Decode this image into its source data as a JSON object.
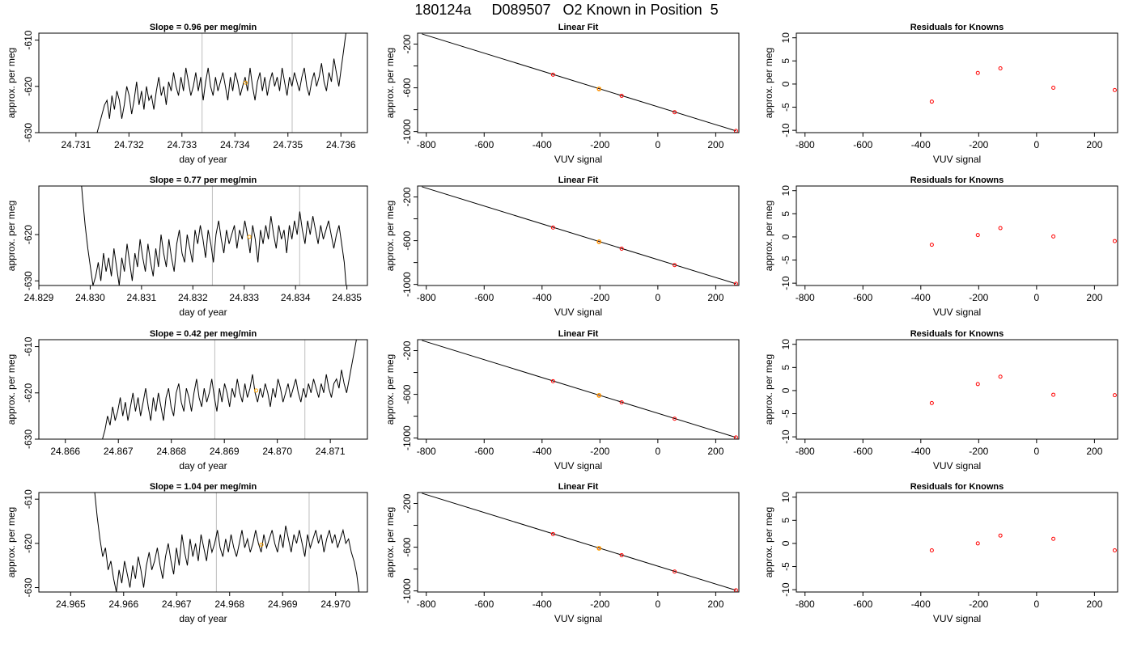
{
  "title": "180124a     D089507   O2 Known in Position  5",
  "colors": {
    "trace": "#000000",
    "vline": "#bebebe",
    "orange": "#ffa500",
    "residual": "#ff0000",
    "frame": "#000000"
  },
  "chart_data": [
    {
      "type": "line",
      "title": "Slope =  0.96  per meg/min",
      "xlabel": "day of year",
      "ylabel": "approx. per meg",
      "xlim": [
        24.7303,
        24.7365
      ],
      "ylim": [
        -630,
        -608.5
      ],
      "xticks": [
        "24.731",
        "24.732",
        "24.733",
        "24.734",
        "24.735",
        "24.736"
      ],
      "yticks": [
        "-610",
        "-620",
        "-630"
      ],
      "vlines": [
        24.73338,
        24.73508
      ],
      "highlight": {
        "x": 24.7342,
        "y": -619.2
      },
      "x_start": 24.7314,
      "x_end": 24.7361,
      "y_points": [
        -630,
        -628,
        -626,
        -624,
        -623,
        -627,
        -622,
        -625,
        -621,
        -623,
        -627,
        -624,
        -620,
        -622,
        -626,
        -623,
        -619,
        -624,
        -621,
        -625,
        -620,
        -623,
        -622,
        -625,
        -621,
        -618,
        -622,
        -620,
        -624,
        -619,
        -621,
        -617,
        -620,
        -622,
        -618,
        -621,
        -616,
        -619,
        -622,
        -620,
        -617,
        -621,
        -618,
        -623,
        -619,
        -616,
        -620,
        -622,
        -618,
        -621,
        -619,
        -617,
        -620,
        -623,
        -618,
        -621,
        -617,
        -619,
        -622,
        -620,
        -618,
        -621,
        -616,
        -620,
        -623,
        -619,
        -617,
        -621,
        -618,
        -622,
        -619,
        -617,
        -620,
        -618,
        -621,
        -616,
        -619,
        -622,
        -618,
        -620,
        -617,
        -619,
        -621,
        -618,
        -616,
        -620,
        -622,
        -619,
        -617,
        -620,
        -618,
        -615,
        -619,
        -621,
        -617,
        -619,
        -614,
        -617,
        -620,
        -616,
        -612,
        -608
      ]
    },
    {
      "type": "scatter",
      "title": "Linear Fit",
      "xlabel": "VUV signal",
      "ylabel": "approx. per meg",
      "xlim": [
        -830,
        280
      ],
      "ylim": [
        -1010,
        -100
      ],
      "xticks": [
        -800,
        -600,
        -400,
        -200,
        0,
        200
      ],
      "yticks": [
        -200,
        -600,
        -1000
      ],
      "line": [
        [
          -815,
          -107
        ],
        [
          270,
          -994
        ]
      ],
      "points": [
        [
          -362,
          -480
        ],
        [
          -203,
          -610
        ],
        [
          -125,
          -673
        ],
        [
          58,
          -823
        ],
        [
          270,
          -994
        ]
      ],
      "highlight": [
        -203,
        -610
      ]
    },
    {
      "type": "scatter",
      "title": "Residuals for Knowns",
      "xlabel": "VUV signal",
      "ylabel": "approx. per meg",
      "xlim": [
        -830,
        280
      ],
      "ylim": [
        -10.5,
        11
      ],
      "xticks": [
        -800,
        -600,
        -400,
        -200,
        0,
        200
      ],
      "yticks": [
        10,
        5,
        0,
        -5,
        -10
      ],
      "points": [
        [
          -362,
          -3.8
        ],
        [
          -203,
          2.4
        ],
        [
          -125,
          3.4
        ],
        [
          58,
          -0.8
        ],
        [
          270,
          -1.3
        ]
      ]
    },
    {
      "type": "line",
      "title": "Slope =  0.77  per meg/min",
      "xlabel": "day of year",
      "ylabel": "approx. per meg",
      "xlim": [
        24.829,
        24.8354
      ],
      "ylim": [
        -631,
        -609.5
      ],
      "xticks": [
        "24.829",
        "24.830",
        "24.831",
        "24.832",
        "24.833",
        "24.834",
        "24.835"
      ],
      "yticks": [
        "-620",
        "-630"
      ],
      "vlines": [
        24.83238,
        24.83408
      ],
      "highlight": {
        "x": 24.8331,
        "y": -620.5
      },
      "x_start": 24.8298,
      "x_end": 24.835,
      "y_points": [
        -605,
        -612,
        -618,
        -623,
        -627,
        -631,
        -629,
        -626,
        -630,
        -624,
        -628,
        -625,
        -629,
        -623,
        -627,
        -631,
        -625,
        -628,
        -622,
        -626,
        -630,
        -624,
        -627,
        -621,
        -625,
        -628,
        -622,
        -626,
        -629,
        -623,
        -627,
        -620,
        -624,
        -627,
        -621,
        -625,
        -628,
        -622,
        -619,
        -624,
        -626,
        -620,
        -623,
        -626,
        -619,
        -622,
        -618,
        -621,
        -625,
        -619,
        -622,
        -626,
        -620,
        -617,
        -621,
        -624,
        -619,
        -622,
        -620,
        -618,
        -623,
        -619,
        -621,
        -617,
        -620,
        -624,
        -618,
        -621,
        -626,
        -619,
        -622,
        -618,
        -621,
        -616,
        -620,
        -623,
        -618,
        -621,
        -619,
        -624,
        -618,
        -621,
        -617,
        -620,
        -615,
        -619,
        -622,
        -617,
        -620,
        -616,
        -619,
        -622,
        -618,
        -621,
        -619,
        -617,
        -620,
        -623,
        -620,
        -618,
        -622,
        -626,
        -633
      ]
    },
    {
      "type": "scatter",
      "title": "Linear Fit",
      "xlabel": "VUV signal",
      "ylabel": "approx. per meg",
      "xlim": [
        -830,
        280
      ],
      "ylim": [
        -1010,
        -100
      ],
      "xticks": [
        -800,
        -600,
        -400,
        -200,
        0,
        200
      ],
      "yticks": [
        -200,
        -600,
        -1000
      ],
      "line": [
        [
          -815,
          -107
        ],
        [
          270,
          -994
        ]
      ],
      "points": [
        [
          -362,
          -480
        ],
        [
          -203,
          -610
        ],
        [
          -125,
          -673
        ],
        [
          58,
          -823
        ],
        [
          270,
          -994
        ]
      ],
      "highlight": [
        -203,
        -610
      ]
    },
    {
      "type": "scatter",
      "title": "Residuals for Knowns",
      "xlabel": "VUV signal",
      "ylabel": "approx. per meg",
      "xlim": [
        -830,
        280
      ],
      "ylim": [
        -10.5,
        11
      ],
      "xticks": [
        -800,
        -600,
        -400,
        -200,
        0,
        200
      ],
      "yticks": [
        10,
        5,
        0,
        -5,
        -10
      ],
      "points": [
        [
          -362,
          -1.7
        ],
        [
          -203,
          0.4
        ],
        [
          -125,
          1.9
        ],
        [
          58,
          0.1
        ],
        [
          270,
          -0.9
        ]
      ]
    },
    {
      "type": "line",
      "title": "Slope =  0.42  per meg/min",
      "xlabel": "day of year",
      "ylabel": "approx. per meg",
      "xlim": [
        24.8655,
        24.8717
      ],
      "ylim": [
        -630,
        -608.5
      ],
      "xticks": [
        "24.866",
        "24.867",
        "24.868",
        "24.869",
        "24.870",
        "24.871"
      ],
      "yticks": [
        "-610",
        "-620",
        "-630"
      ],
      "vlines": [
        24.86882,
        24.87052
      ],
      "highlight": {
        "x": 24.8696,
        "y": -619.5
      },
      "x_start": 24.8667,
      "x_end": 24.8715,
      "y_points": [
        -630,
        -628,
        -625,
        -627,
        -623,
        -626,
        -624,
        -621,
        -625,
        -622,
        -626,
        -623,
        -620,
        -624,
        -621,
        -625,
        -622,
        -619,
        -623,
        -626,
        -621,
        -624,
        -620,
        -623,
        -626,
        -621,
        -619,
        -623,
        -625,
        -620,
        -618,
        -622,
        -624,
        -619,
        -621,
        -624,
        -620,
        -617,
        -621,
        -623,
        -619,
        -622,
        -620,
        -617,
        -621,
        -624,
        -619,
        -622,
        -618,
        -620,
        -623,
        -619,
        -621,
        -617,
        -620,
        -622,
        -618,
        -621,
        -619,
        -616,
        -620,
        -622,
        -619,
        -621,
        -618,
        -620,
        -623,
        -619,
        -621,
        -617,
        -619,
        -622,
        -620,
        -618,
        -621,
        -619,
        -617,
        -620,
        -622,
        -619,
        -621,
        -618,
        -620,
        -617,
        -619,
        -621,
        -618,
        -620,
        -616,
        -619,
        -621,
        -618,
        -617,
        -619,
        -615,
        -618,
        -620,
        -617,
        -614,
        -611,
        -608
      ]
    },
    {
      "type": "scatter",
      "title": "Linear Fit",
      "xlabel": "VUV signal",
      "ylabel": "approx. per meg",
      "xlim": [
        -830,
        280
      ],
      "ylim": [
        -1010,
        -100
      ],
      "xticks": [
        -800,
        -600,
        -400,
        -200,
        0,
        200
      ],
      "yticks": [
        -200,
        -600,
        -1000
      ],
      "line": [
        [
          -815,
          -107
        ],
        [
          270,
          -994
        ]
      ],
      "points": [
        [
          -362,
          -480
        ],
        [
          -203,
          -610
        ],
        [
          -125,
          -673
        ],
        [
          58,
          -823
        ],
        [
          270,
          -994
        ]
      ],
      "highlight": [
        -203,
        -610
      ]
    },
    {
      "type": "scatter",
      "title": "Residuals for Knowns",
      "xlabel": "VUV signal",
      "ylabel": "approx. per meg",
      "xlim": [
        -830,
        280
      ],
      "ylim": [
        -10.5,
        11
      ],
      "xticks": [
        -800,
        -600,
        -400,
        -200,
        0,
        200
      ],
      "yticks": [
        10,
        5,
        0,
        -5,
        -10
      ],
      "points": [
        [
          -362,
          -2.7
        ],
        [
          -203,
          1.4
        ],
        [
          -125,
          3.0
        ],
        [
          58,
          -0.9
        ],
        [
          270,
          -1.0
        ]
      ]
    },
    {
      "type": "line",
      "title": "Slope =  1.04  per meg/min",
      "xlabel": "day of year",
      "ylabel": "approx. per meg",
      "xlim": [
        24.9644,
        24.9706
      ],
      "ylim": [
        -631,
        -608.5
      ],
      "xticks": [
        "24.965",
        "24.966",
        "24.967",
        "24.968",
        "24.969",
        "24.970"
      ],
      "yticks": [
        "-610",
        "-620",
        "-630"
      ],
      "vlines": [
        24.96775,
        24.9695
      ],
      "highlight": {
        "x": 24.9686,
        "y": -620.3
      },
      "x_start": 24.96545,
      "x_end": 24.97045,
      "y_points": [
        -608,
        -614,
        -619,
        -623,
        -621,
        -626,
        -624,
        -628,
        -631,
        -626,
        -629,
        -624,
        -627,
        -630,
        -625,
        -628,
        -623,
        -626,
        -630,
        -625,
        -622,
        -626,
        -624,
        -621,
        -625,
        -628,
        -623,
        -620,
        -624,
        -627,
        -621,
        -625,
        -618,
        -622,
        -625,
        -619,
        -623,
        -620,
        -624,
        -618,
        -621,
        -624,
        -619,
        -622,
        -620,
        -617,
        -621,
        -623,
        -619,
        -622,
        -618,
        -621,
        -623,
        -620,
        -617,
        -621,
        -619,
        -622,
        -620,
        -617,
        -620,
        -622,
        -618,
        -621,
        -619,
        -617,
        -620,
        -622,
        -618,
        -621,
        -616,
        -619,
        -622,
        -618,
        -620,
        -617,
        -620,
        -623,
        -618,
        -621,
        -619,
        -617,
        -620,
        -618,
        -622,
        -619,
        -617,
        -620,
        -618,
        -621,
        -619,
        -617,
        -620,
        -619,
        -622,
        -624,
        -627,
        -632
      ]
    },
    {
      "type": "scatter",
      "title": "Linear Fit",
      "xlabel": "VUV signal",
      "ylabel": "approx. per meg",
      "xlim": [
        -830,
        280
      ],
      "ylim": [
        -1010,
        -100
      ],
      "xticks": [
        -800,
        -600,
        -400,
        -200,
        0,
        200
      ],
      "yticks": [
        -200,
        -600,
        -1000
      ],
      "line": [
        [
          -815,
          -107
        ],
        [
          270,
          -994
        ]
      ],
      "points": [
        [
          -362,
          -480
        ],
        [
          -203,
          -610
        ],
        [
          -125,
          -673
        ],
        [
          58,
          -823
        ],
        [
          270,
          -994
        ]
      ],
      "highlight": [
        -203,
        -610
      ]
    },
    {
      "type": "scatter",
      "title": "Residuals for Knowns",
      "xlabel": "VUV signal",
      "ylabel": "approx. per meg",
      "xlim": [
        -830,
        280
      ],
      "ylim": [
        -10.5,
        11
      ],
      "xticks": [
        -800,
        -600,
        -400,
        -200,
        0,
        200
      ],
      "yticks": [
        10,
        5,
        0,
        -5,
        -10
      ],
      "points": [
        [
          -362,
          -1.5
        ],
        [
          -203,
          0.0
        ],
        [
          -125,
          1.7
        ],
        [
          58,
          1.0
        ],
        [
          270,
          -1.5
        ]
      ]
    }
  ]
}
